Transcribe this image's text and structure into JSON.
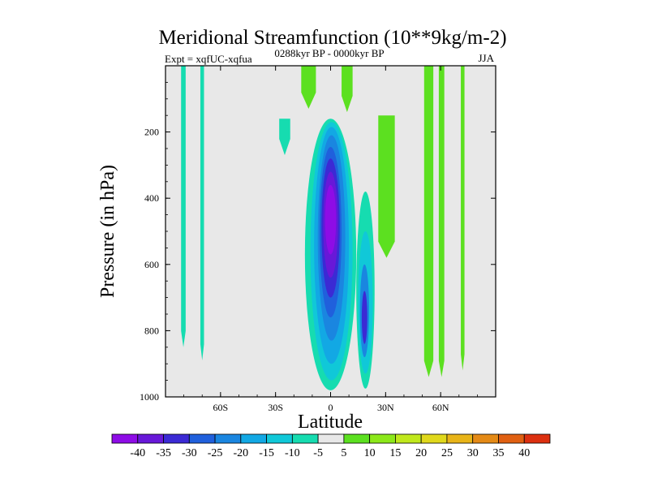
{
  "chart_data": {
    "type": "heatmap",
    "title": "Meridional Streamfunction (10**9kg/m-2)",
    "subtitle_left": "Expt = xqfUC-xqfua",
    "subtitle_center": "0288kyr BP - 0000kyr BP",
    "subtitle_right": "JJA",
    "xlabel": "Latitude",
    "ylabel": "Pressure (in hPa)",
    "xlim": [
      -90,
      90
    ],
    "ylim": [
      0,
      1000
    ],
    "y_inverted": true,
    "x_ticks": [
      {
        "value": -60,
        "label": "60S"
      },
      {
        "value": -30,
        "label": "30S"
      },
      {
        "value": 0,
        "label": "0"
      },
      {
        "value": 30,
        "label": "30N"
      },
      {
        "value": 60,
        "label": "60N"
      }
    ],
    "y_ticks": [
      {
        "value": 200,
        "label": "200"
      },
      {
        "value": 400,
        "label": "400"
      },
      {
        "value": 600,
        "label": "600"
      },
      {
        "value": 800,
        "label": "800"
      },
      {
        "value": 1000,
        "label": "1000"
      }
    ],
    "colorbar": {
      "levels": [
        "-40",
        "-35",
        "-30",
        "-25",
        "-20",
        "-15",
        "-10",
        "-5",
        "5",
        "10",
        "15",
        "20",
        "25",
        "30",
        "35",
        "40"
      ],
      "colors": [
        "#8e0ce6",
        "#6818d8",
        "#3b2ad4",
        "#2060dc",
        "#1a86e0",
        "#12a8e4",
        "#10c8d8",
        "#16dcb0",
        "#e8e8e8",
        "#5ce020",
        "#8ce81a",
        "#c0e81c",
        "#e0d81c",
        "#e8b418",
        "#e48a16",
        "#e06012",
        "#dc3010"
      ]
    },
    "contour_regions": [
      {
        "level": "-5",
        "color": "#16dcb0",
        "lat": [
          -14,
          14
        ],
        "p": [
          160,
          980
        ]
      },
      {
        "level": "-10",
        "color": "#10c8d8",
        "lat": [
          -11,
          12
        ],
        "p": [
          170,
          950
        ]
      },
      {
        "level": "-15",
        "color": "#12a8e4",
        "lat": [
          -9,
          10
        ],
        "p": [
          185,
          900
        ]
      },
      {
        "level": "-20",
        "color": "#1a86e0",
        "lat": [
          -7,
          8
        ],
        "p": [
          210,
          830
        ]
      },
      {
        "level": "-25",
        "color": "#2060dc",
        "lat": [
          -6,
          6
        ],
        "p": [
          245,
          760
        ]
      },
      {
        "level": "-30",
        "color": "#3b2ad4",
        "lat": [
          -5,
          5
        ],
        "p": [
          280,
          700
        ]
      },
      {
        "level": "-35",
        "color": "#6818d8",
        "lat": [
          -4,
          4
        ],
        "p": [
          320,
          640
        ]
      },
      {
        "level": "-40",
        "color": "#8e0ce6",
        "lat": [
          -3,
          3
        ],
        "p": [
          360,
          570
        ]
      }
    ]
  }
}
